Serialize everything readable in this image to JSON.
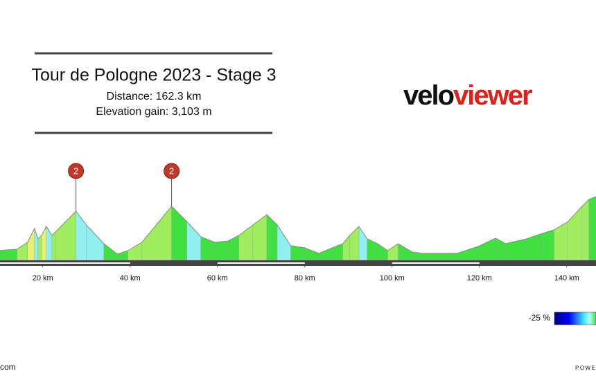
{
  "chart_data": {
    "type": "elevation",
    "title": "Tour de Pologne 2023 - Stage 3",
    "subtitle": [
      "Distance: 162.3 km",
      "Elevation gain: 3,103 m"
    ],
    "logo": [
      "velo",
      "viewer"
    ],
    "x": [
      10.2,
      11.7,
      14.1,
      16.5,
      18.1,
      18.9,
      19.7,
      20.8,
      22.1,
      22.9,
      27.6,
      30.0,
      34.0,
      37.1,
      39.5,
      42.7,
      49.5,
      53.0,
      56.2,
      59.4,
      62.5,
      64.9,
      68.1,
      71.3,
      73.7,
      76.8,
      80.0,
      83.2,
      86.3,
      88.7,
      90.3,
      92.4,
      94.3,
      96.7,
      99.0,
      101.4,
      102.2,
      104.6,
      107.0,
      111.7,
      114.9,
      119.7,
      123.7,
      126.0,
      130.8,
      134.0,
      137.1,
      140.3,
      143.5,
      145.1,
      146.7
    ],
    "elevation": [
      292,
      295,
      298,
      328,
      388,
      343,
      358,
      397,
      358,
      373,
      463,
      403,
      322,
      277,
      292,
      328,
      484,
      418,
      352,
      328,
      334,
      358,
      403,
      448,
      403,
      313,
      304,
      280,
      304,
      322,
      358,
      397,
      343,
      322,
      292,
      322,
      313,
      286,
      280,
      280,
      280,
      310,
      346,
      322,
      343,
      364,
      382,
      418,
      484,
      514,
      526
    ],
    "climbs": [
      {
        "x": 27.6,
        "label": "2"
      },
      {
        "x": 49.5,
        "label": "2"
      }
    ],
    "xlim": [
      10.2,
      146.7
    ],
    "ylim": [
      250,
      526
    ],
    "xticks": [
      {
        "value": 20,
        "label": "20 km"
      },
      {
        "value": 40,
        "label": "40 km"
      },
      {
        "value": 60,
        "label": "60 km"
      },
      {
        "value": 80,
        "label": "80 km"
      },
      {
        "value": 100,
        "label": "100 km"
      },
      {
        "value": 120,
        "label": "120 km"
      },
      {
        "value": 140,
        "label": "140 km"
      }
    ],
    "legend_label": "-25 %",
    "footer_left": "com",
    "footer_right": "POWE"
  }
}
